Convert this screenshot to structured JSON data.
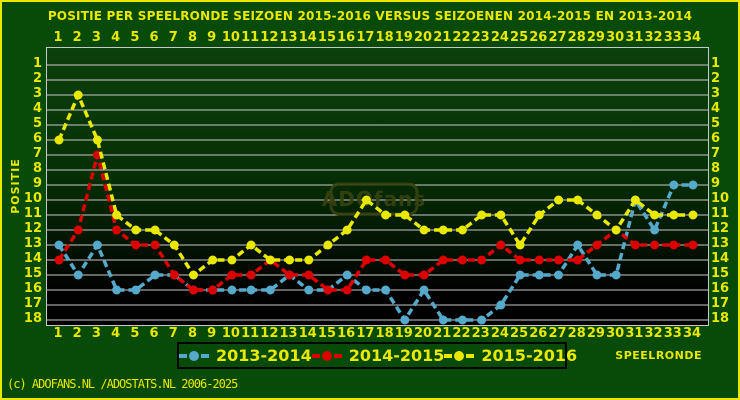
{
  "title": "POSITIE PER SPEELRONDE SEIZOEN 2015-2016 VERSUS SEIZOENEN 2014-2015 EN 2013-2014",
  "watermark": "ADOfans",
  "footer": "(c) ADOFANS.NL /ADOSTATS.NL 2006-2025",
  "axis": {
    "x_label": "SPEELRONDE",
    "y_label": "POSITIE",
    "x_ticks": [
      1,
      2,
      3,
      4,
      5,
      6,
      7,
      8,
      9,
      10,
      11,
      12,
      13,
      14,
      15,
      16,
      17,
      18,
      19,
      20,
      21,
      22,
      23,
      24,
      25,
      26,
      27,
      28,
      29,
      30,
      31,
      32,
      33,
      34
    ],
    "y_ticks": [
      1,
      2,
      3,
      4,
      5,
      6,
      7,
      8,
      9,
      10,
      11,
      12,
      13,
      14,
      15,
      16,
      17,
      18
    ]
  },
  "legend": [
    {
      "label": "2013-2014",
      "color": "#55aacc"
    },
    {
      "label": "2014-2015",
      "color": "#dd0000"
    },
    {
      "label": "2015-2016",
      "color": "#e8e800"
    }
  ],
  "colors": {
    "background": "#084a08",
    "frame": "#e8e800",
    "grid": "#c8c8c8",
    "tick_text": "#e8e800",
    "watermark": "#39430f"
  },
  "chart_data": {
    "type": "line",
    "title": "POSITIE PER SPEELRONDE SEIZOEN 2015-2016 VERSUS SEIZOENEN 2014-2015 EN 2013-2014",
    "xlabel": "SPEELRONDE",
    "ylabel": "POSITIE",
    "x": [
      1,
      2,
      3,
      4,
      5,
      6,
      7,
      8,
      9,
      10,
      11,
      12,
      13,
      14,
      15,
      16,
      17,
      18,
      19,
      20,
      21,
      22,
      23,
      24,
      25,
      26,
      27,
      28,
      29,
      30,
      31,
      32,
      33,
      34
    ],
    "xlim": [
      1,
      34
    ],
    "ylim": [
      1,
      18
    ],
    "y_inverted": true,
    "grid": "horizontal",
    "legend_position": "bottom",
    "series": [
      {
        "name": "2013-2014",
        "color": "#55aacc",
        "values": [
          13,
          15,
          13,
          16,
          16,
          15,
          15,
          16,
          16,
          16,
          16,
          16,
          15,
          16,
          16,
          15,
          16,
          16,
          18,
          16,
          18,
          18,
          18,
          17,
          15,
          15,
          15,
          13,
          15,
          15,
          10,
          12,
          9,
          9
        ]
      },
      {
        "name": "2014-2015",
        "color": "#dd0000",
        "values": [
          14,
          12,
          7,
          12,
          13,
          13,
          15,
          16,
          16,
          15,
          15,
          14,
          15,
          15,
          16,
          16,
          14,
          14,
          15,
          15,
          14,
          14,
          14,
          13,
          14,
          14,
          14,
          14,
          13,
          12,
          13,
          13,
          13,
          13
        ]
      },
      {
        "name": "2015-2016",
        "color": "#e8e800",
        "values": [
          6,
          3,
          6,
          11,
          12,
          12,
          13,
          15,
          14,
          14,
          13,
          14,
          14,
          14,
          13,
          12,
          10,
          11,
          11,
          12,
          12,
          12,
          11,
          11,
          13,
          11,
          10,
          10,
          11,
          12,
          10,
          11,
          11,
          11
        ]
      }
    ]
  }
}
